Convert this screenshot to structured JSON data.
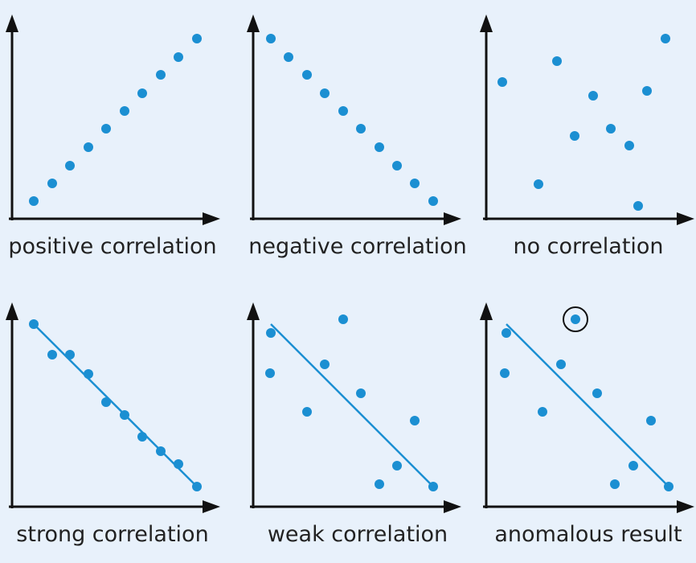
{
  "panels": [
    {
      "label": "positive correlation"
    },
    {
      "label": "negative correlation"
    },
    {
      "label": "no correlation"
    },
    {
      "label": "strong correlation"
    },
    {
      "label": "weak correlation"
    },
    {
      "label": "anomalous result"
    }
  ]
}
